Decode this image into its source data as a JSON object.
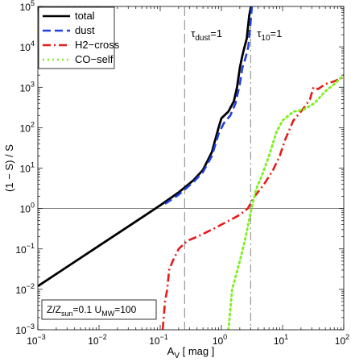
{
  "chart_data": {
    "type": "line",
    "xlabel": {
      "base": "A",
      "sub": "V",
      "rest": " [ mag ]"
    },
    "ylabel": "(1 − S) / S",
    "x_scale": "log",
    "y_scale": "log",
    "xlim": [
      0.001,
      100
    ],
    "ylim": [
      0.001,
      100000
    ],
    "x_ticks": [
      {
        "v": 0.001,
        "b": "10",
        "e": "−3"
      },
      {
        "v": 0.01,
        "b": "10",
        "e": "−2"
      },
      {
        "v": 0.1,
        "b": "10",
        "e": "−1"
      },
      {
        "v": 1,
        "b": "10",
        "e": "0"
      },
      {
        "v": 10,
        "b": "10",
        "e": "1"
      },
      {
        "v": 100,
        "b": "10",
        "e": "2"
      }
    ],
    "y_ticks": [
      {
        "v": 0.001,
        "b": "10",
        "e": "−3"
      },
      {
        "v": 0.01,
        "b": "10",
        "e": "−2"
      },
      {
        "v": 0.1,
        "b": "10",
        "e": "−1"
      },
      {
        "v": 1,
        "b": "10",
        "e": "0"
      },
      {
        "v": 10,
        "b": "10",
        "e": "1"
      },
      {
        "v": 100,
        "b": "10",
        "e": "2"
      },
      {
        "v": 1000,
        "b": "10",
        "e": "3"
      },
      {
        "v": 10000,
        "b": "10",
        "e": "4"
      },
      {
        "v": 100000,
        "b": "10",
        "e": "5"
      }
    ],
    "legend_position": "top-left",
    "series": [
      {
        "name": "total",
        "color": "#000000",
        "dash": "solid",
        "points": [
          [
            0.001,
            0.012
          ],
          [
            0.003,
            0.036
          ],
          [
            0.01,
            0.12
          ],
          [
            0.03,
            0.36
          ],
          [
            0.1,
            1.2
          ],
          [
            0.2,
            2.5
          ],
          [
            0.35,
            5
          ],
          [
            0.5,
            9
          ],
          [
            0.7,
            25
          ],
          [
            0.9,
            100
          ],
          [
            1.0,
            170
          ],
          [
            1.3,
            250
          ],
          [
            1.6,
            450
          ],
          [
            1.8,
            1000
          ],
          [
            2.0,
            3000
          ],
          [
            2.2,
            6000
          ],
          [
            2.35,
            9000
          ],
          [
            2.6,
            16000
          ],
          [
            2.85,
            60000
          ],
          [
            3.05,
            100000
          ]
        ]
      },
      {
        "name": "dust",
        "color": "#1f3fe0",
        "dash": "dash",
        "points": [
          [
            0.12,
            1.3
          ],
          [
            0.2,
            2.2
          ],
          [
            0.35,
            4.5
          ],
          [
            0.5,
            8
          ],
          [
            0.7,
            20
          ],
          [
            0.9,
            70
          ],
          [
            1.1,
            130
          ],
          [
            1.4,
            200
          ],
          [
            1.7,
            400
          ],
          [
            2.0,
            1200
          ],
          [
            2.2,
            3000
          ],
          [
            2.45,
            5000
          ],
          [
            2.75,
            10000
          ],
          [
            2.95,
            30000
          ],
          [
            3.15,
            100000
          ]
        ]
      },
      {
        "name": "H2−cross",
        "color": "#e61a1a",
        "dash": "dashdot",
        "points": [
          [
            0.11,
            0.001
          ],
          [
            0.12,
            0.005
          ],
          [
            0.13,
            0.01
          ],
          [
            0.14,
            0.03
          ],
          [
            0.16,
            0.05
          ],
          [
            0.2,
            0.1
          ],
          [
            0.28,
            0.16
          ],
          [
            0.4,
            0.2
          ],
          [
            0.7,
            0.3
          ],
          [
            1.0,
            0.4
          ],
          [
            1.5,
            0.55
          ],
          [
            2.0,
            0.7
          ],
          [
            2.7,
            1.0
          ],
          [
            3.5,
            2.0
          ],
          [
            5,
            4
          ],
          [
            7,
            9
          ],
          [
            9,
            20
          ],
          [
            11,
            50
          ],
          [
            15,
            150
          ],
          [
            22,
            300
          ],
          [
            28,
            500
          ],
          [
            32,
            1000
          ],
          [
            38,
            900
          ],
          [
            50,
            1200
          ],
          [
            70,
            1400
          ],
          [
            100,
            1800
          ]
        ]
      },
      {
        "name": "CO−self",
        "color": "#7df01a",
        "dash": "dot",
        "points": [
          [
            1.3,
            0.001
          ],
          [
            1.5,
            0.01
          ],
          [
            2.0,
            0.05
          ],
          [
            2.5,
            0.2
          ],
          [
            3.0,
            0.8
          ],
          [
            3.3,
            1.5
          ],
          [
            3.7,
            3
          ],
          [
            4.5,
            6
          ],
          [
            6,
            20
          ],
          [
            8,
            80
          ],
          [
            10,
            150
          ],
          [
            15,
            250
          ],
          [
            22,
            280
          ],
          [
            33,
            400
          ],
          [
            50,
            800
          ],
          [
            70,
            1200
          ],
          [
            100,
            2000
          ]
        ]
      }
    ],
    "h_line": {
      "y": 1
    },
    "v_lines": [
      {
        "x": 0.25,
        "label": {
          "base": "τ",
          "sub": "dust",
          "rest": "=1"
        },
        "dash": "long"
      },
      {
        "x": 3.0,
        "label": {
          "base": "τ",
          "sub": "10",
          "rest": "=1"
        },
        "dash": "dashdot"
      }
    ],
    "annotation": {
      "a": "Z/Z",
      "a_sub": "sun",
      "b": "=0.1 U",
      "b_sub": "MW",
      "c": "=100"
    }
  }
}
